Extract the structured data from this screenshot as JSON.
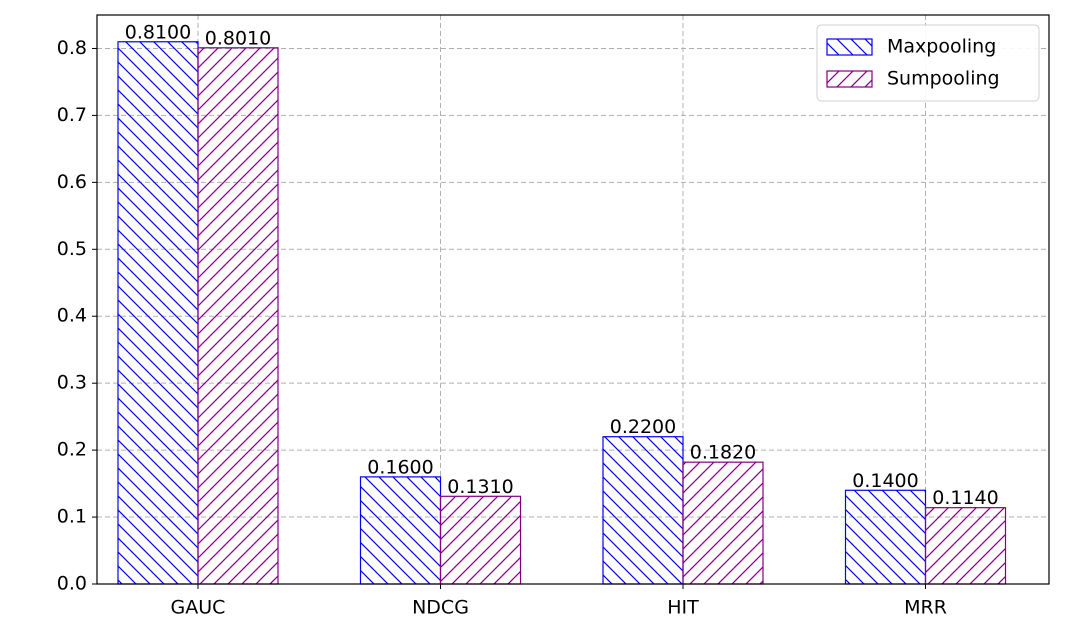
{
  "chart_data": {
    "type": "bar",
    "categories": [
      "GAUC",
      "NDCG",
      "HIT",
      "MRR"
    ],
    "series": [
      {
        "name": "Maxpooling",
        "color": "#0000ff",
        "hatch": "\\",
        "values": [
          0.81,
          0.16,
          0.22,
          0.14
        ],
        "value_labels": [
          "0.8100",
          "0.1600",
          "0.2200",
          "0.1400"
        ]
      },
      {
        "name": "Sumpooling",
        "color": "#800080",
        "hatch": "/",
        "values": [
          0.801,
          0.131,
          0.182,
          0.114
        ],
        "value_labels": [
          "0.8010",
          "0.1310",
          "0.1820",
          "0.1140"
        ]
      }
    ],
    "ylim": [
      0,
      0.85
    ],
    "yticks": [
      {
        "value": 0,
        "label": "0.0"
      },
      0.1,
      0.2,
      0.3,
      0.4,
      0.5,
      0.6,
      0.7,
      0.8
    ],
    "grid": true,
    "legend": "upper right"
  }
}
